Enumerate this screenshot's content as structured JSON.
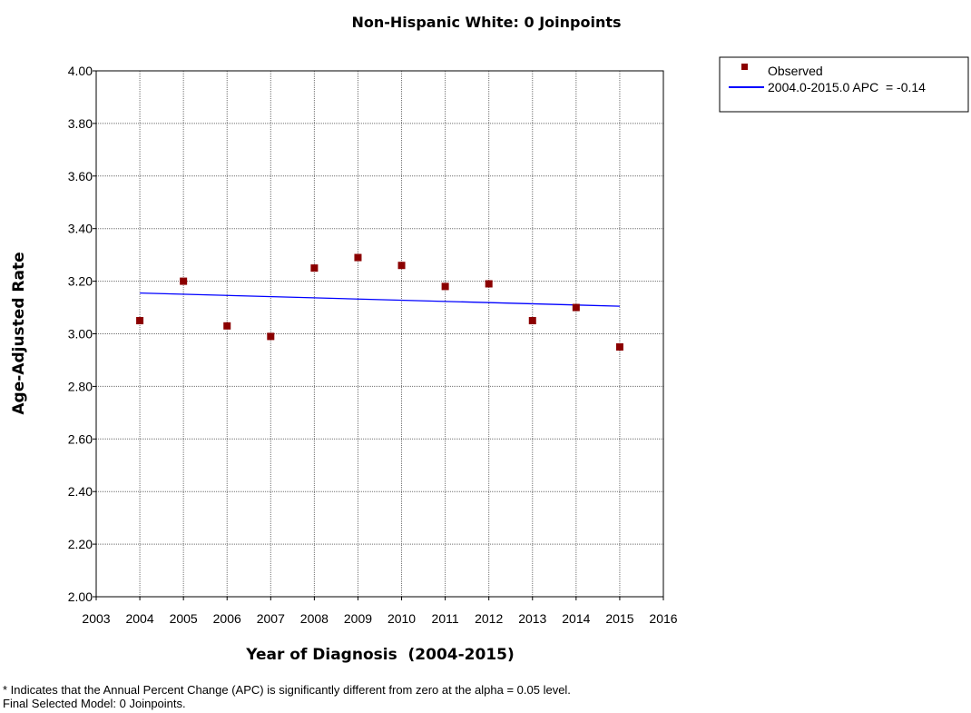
{
  "chart_data": {
    "type": "scatter",
    "title": "Non-Hispanic White: 0 Joinpoints",
    "xlabel": "Year of Diagnosis  (2004-2015)",
    "ylabel": "Age-Adjusted Rate",
    "xlim": [
      2003,
      2016
    ],
    "ylim": [
      2.0,
      4.0
    ],
    "x_ticks": [
      "2003",
      "2004",
      "2005",
      "2006",
      "2007",
      "2008",
      "2009",
      "2010",
      "2011",
      "2012",
      "2013",
      "2014",
      "2015",
      "2016"
    ],
    "y_ticks": [
      "2.00",
      "2.20",
      "2.40",
      "2.60",
      "2.80",
      "3.00",
      "3.20",
      "3.40",
      "3.60",
      "3.80",
      "4.00"
    ],
    "grid": true,
    "legend_position": "top-right, outside plot",
    "series": [
      {
        "name": "Observed",
        "kind": "points",
        "color": "#8b0000",
        "x": [
          2004,
          2005,
          2006,
          2007,
          2008,
          2009,
          2010,
          2011,
          2012,
          2013,
          2014,
          2015
        ],
        "y": [
          3.05,
          3.2,
          3.03,
          2.99,
          3.25,
          3.29,
          3.26,
          3.18,
          3.19,
          3.05,
          3.1,
          2.95
        ]
      },
      {
        "name": "2004.0-2015.0 APC  = -0.14",
        "kind": "line",
        "color": "#0000ff",
        "x": [
          2004,
          2015
        ],
        "y": [
          3.155,
          3.105
        ]
      }
    ]
  },
  "footnotes": [
    "* Indicates that the Annual Percent Change (APC) is significantly different from zero at the alpha = 0.05 level.",
    "Final Selected Model: 0 Joinpoints."
  ]
}
